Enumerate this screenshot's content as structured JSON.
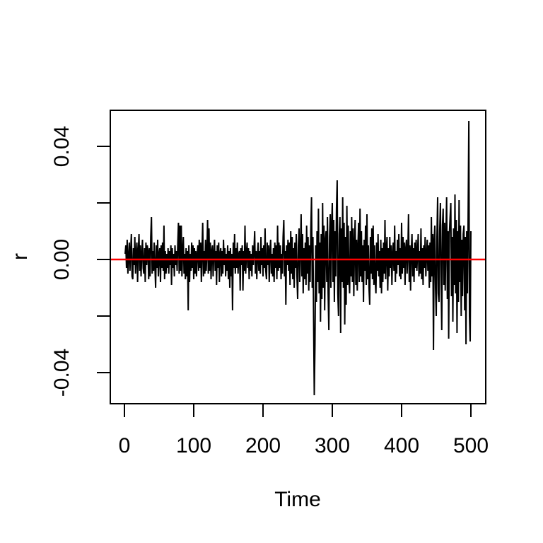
{
  "chart_data": {
    "type": "line",
    "title": "",
    "xlabel": "Time",
    "ylabel": "r",
    "grid": false,
    "legend": null,
    "background": "#FFFFFF",
    "axis_color": "#000000",
    "xlim": [
      -19,
      520
    ],
    "ylim": [
      -0.052,
      0.053
    ],
    "x_axis_range_shown": [
      0,
      500
    ],
    "x_ticks": [
      {
        "value": 0,
        "label": "0"
      },
      {
        "value": 100,
        "label": "100"
      },
      {
        "value": 200,
        "label": "200"
      },
      {
        "value": 300,
        "label": "300"
      },
      {
        "value": 400,
        "label": "400"
      },
      {
        "value": 500,
        "label": "500"
      }
    ],
    "y_ticks": [
      {
        "value": 0.04,
        "label": "0.04"
      },
      {
        "value": 0.02,
        "label": ""
      },
      {
        "value": 0.0,
        "label": "0.00"
      },
      {
        "value": -0.02,
        "label": ""
      },
      {
        "value": -0.04,
        "label": "-0.04"
      }
    ],
    "reference_line": {
      "y": 0,
      "color": "#FF0000",
      "style": "solid"
    },
    "x_start": 1,
    "y_scale": 0.001,
    "notable_points": [
      {
        "t": 274,
        "r": -0.048
      },
      {
        "t": 307,
        "r": 0.028
      },
      {
        "t": 446,
        "r": -0.032
      },
      {
        "t": 497,
        "r": 0.049
      }
    ],
    "series": [
      {
        "name": "r",
        "color": "#000000",
        "values_x1000": [
          2,
          5,
          -3,
          7,
          -5,
          1,
          6,
          -4,
          3,
          9,
          -6,
          -7,
          4,
          -2,
          8,
          -5,
          2,
          6,
          -8,
          3,
          9,
          -4,
          5,
          -6,
          2,
          7,
          -3,
          -5,
          4,
          -8,
          6,
          -2,
          5,
          3,
          -7,
          4,
          -6,
          8,
          15,
          -5,
          3,
          -4,
          6,
          -2,
          -10,
          5,
          -3,
          7,
          -6,
          2,
          4,
          -8,
          5,
          -3,
          6,
          -4,
          12,
          -7,
          3,
          -5,
          2,
          -3,
          4,
          -5,
          3,
          -2,
          5,
          -9,
          4,
          -3,
          2,
          -6,
          5,
          -2,
          3,
          -4,
          6,
          13,
          -5,
          12,
          -4,
          12,
          -6,
          3,
          8,
          -5,
          2,
          -7,
          4,
          -6,
          3,
          -18,
          5,
          -8,
          2,
          -4,
          6,
          -3,
          5,
          -7,
          4,
          -5,
          3,
          -6,
          2,
          5,
          -4,
          7,
          -3,
          6,
          -8,
          4,
          13,
          -6,
          3,
          -5,
          7,
          -4,
          2,
          14,
          -5,
          11,
          -4,
          6,
          -7,
          3,
          5,
          -6,
          2,
          7,
          -4,
          3,
          -9,
          5,
          -3,
          6,
          -8,
          2,
          4,
          -6,
          3,
          -5,
          7,
          -2,
          4,
          -6,
          2,
          -4,
          5,
          -7,
          3,
          -10,
          4,
          -6,
          2,
          -18,
          6,
          -3,
          9,
          -5,
          4,
          -3,
          6,
          -5,
          2,
          3,
          -11,
          4,
          -2,
          5,
          -11,
          3,
          -4,
          12,
          -5,
          2,
          6,
          -3,
          4,
          -7,
          3,
          -4,
          2,
          -6,
          5,
          -2,
          4,
          10,
          -5,
          3,
          -7,
          2,
          6,
          -4,
          3,
          -5,
          8,
          -2,
          4,
          -6,
          5,
          -3,
          11,
          -4,
          -7,
          6,
          -2,
          5,
          -8,
          3,
          7,
          -5,
          2,
          -6,
          4,
          -8,
          6,
          -3,
          5,
          -7,
          12,
          -4,
          6,
          -3,
          5,
          -7,
          2,
          -5,
          8,
          14,
          -6,
          3,
          -16,
          5,
          -2,
          7,
          -4,
          6,
          -9,
          10,
          -5,
          8,
          -7,
          4,
          -10,
          6,
          -3,
          9,
          -6,
          -14,
          5,
          11,
          -8,
          3,
          16,
          -6,
          9,
          -12,
          4,
          -7,
          6,
          -9,
          12,
          -5,
          8,
          -11,
          5,
          -8,
          10,
          22,
          -10,
          8,
          -20,
          -48,
          -30,
          5,
          -15,
          10,
          -8,
          18,
          -12,
          6,
          -22,
          9,
          -14,
          20,
          -10,
          12,
          -18,
          7,
          10,
          -8,
          15,
          -12,
          -25,
          8,
          16,
          -10,
          12,
          20,
          -8,
          14,
          -15,
          10,
          -6,
          18,
          28,
          -12,
          -20,
          9,
          15,
          -26,
          11,
          -8,
          22,
          -10,
          13,
          -23,
          8,
          -16,
          19,
          -9,
          12,
          -7,
          -12,
          10,
          -6,
          15,
          -8,
          11,
          -13,
          6,
          14,
          -9,
          7,
          -11,
          5,
          13,
          -8,
          18,
          -6,
          10,
          -8,
          5,
          -15,
          7,
          -4,
          12,
          -9,
          16,
          -7,
          5,
          -10,
          -16,
          8,
          -5,
          11,
          -7,
          12,
          -9,
          5,
          -8,
          -12,
          6,
          -4,
          9,
          -6,
          3,
          -10,
          7,
          -12,
          4,
          -8,
          6,
          -5,
          14,
          -7,
          3,
          8,
          -11,
          4,
          -6,
          8,
          -3,
          5,
          -9,
          2,
          6,
          -4,
          12,
          -8,
          3,
          -5,
          7,
          -2,
          9,
          -6,
          4,
          -7,
          13,
          -5,
          8,
          -3,
          6,
          -9,
          4,
          7,
          -5,
          2,
          16,
          -8,
          5,
          -11,
          3,
          9,
          -6,
          4,
          -8,
          6,
          -3,
          7,
          -4,
          2,
          9,
          -6,
          3,
          -5,
          11,
          -7,
          4,
          -9,
          5,
          -3,
          8,
          -6,
          2,
          7,
          -4,
          5,
          -10,
          6,
          -8,
          15,
          -6,
          9,
          -32,
          7,
          12,
          -10,
          -20,
          8,
          22,
          -12,
          -15,
          10,
          20,
          -8,
          -25,
          12,
          18,
          -9,
          13,
          -11,
          8,
          22,
          -14,
          10,
          -28,
          9,
          15,
          20,
          -13,
          8,
          -22,
          11,
          -9,
          23,
          -12,
          14,
          -26,
          10,
          -15,
          21,
          -8,
          12,
          -20,
          7,
          -13,
          9,
          12,
          -18,
          8,
          -30,
          10,
          -12,
          15,
          49,
          -20,
          -29,
          10
        ]
      }
    ]
  }
}
